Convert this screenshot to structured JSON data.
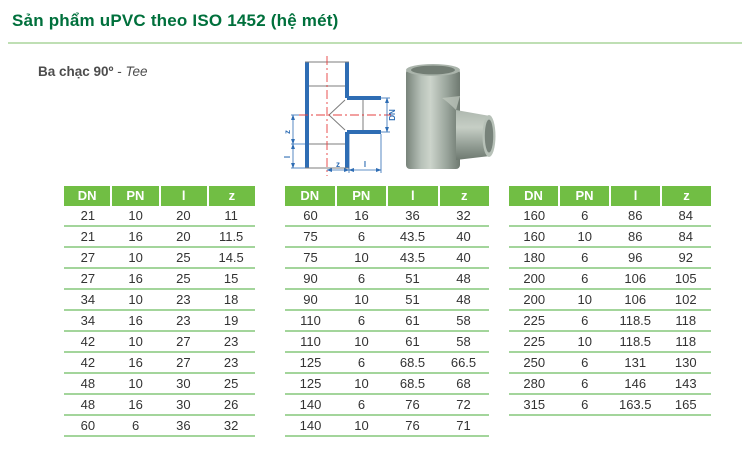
{
  "page": {
    "title": "Sản phẩm uPVC theo ISO 1452 (hệ mét)",
    "subtitle_bold": "Ba chạc 90º",
    "subtitle_sep": " - ",
    "subtitle_italic": "Tee"
  },
  "colors": {
    "title_green": "#00703C",
    "header_green": "#71BE44",
    "row_line_green": "#A3D59B",
    "rule_green": "#BFDFB4",
    "table_text": "#333333",
    "subtitle_gray": "#4D4D4D",
    "drawing_blue": "#2E6DB4",
    "drawing_red": "#E64040",
    "fitting_gray": "#9AA59C"
  },
  "diagram": {
    "labels": {
      "left_top": "z",
      "left_bottom": "l",
      "right": "DN",
      "bottom_left": "z",
      "bottom_right": "l"
    }
  },
  "tables": [
    {
      "headers": [
        "DN",
        "PN",
        "l",
        "z"
      ],
      "rows": [
        [
          "21",
          "10",
          "20",
          "11"
        ],
        [
          "21",
          "16",
          "20",
          "11.5"
        ],
        [
          "27",
          "10",
          "25",
          "14.5"
        ],
        [
          "27",
          "16",
          "25",
          "15"
        ],
        [
          "34",
          "10",
          "23",
          "18"
        ],
        [
          "34",
          "16",
          "23",
          "19"
        ],
        [
          "42",
          "10",
          "27",
          "23"
        ],
        [
          "42",
          "16",
          "27",
          "23"
        ],
        [
          "48",
          "10",
          "30",
          "25"
        ],
        [
          "48",
          "16",
          "30",
          "26"
        ],
        [
          "60",
          "6",
          "36",
          "32"
        ]
      ]
    },
    {
      "headers": [
        "DN",
        "PN",
        "l",
        "z"
      ],
      "rows": [
        [
          "60",
          "16",
          "36",
          "32"
        ],
        [
          "75",
          "6",
          "43.5",
          "40"
        ],
        [
          "75",
          "10",
          "43.5",
          "40"
        ],
        [
          "90",
          "6",
          "51",
          "48"
        ],
        [
          "90",
          "10",
          "51",
          "48"
        ],
        [
          "110",
          "6",
          "61",
          "58"
        ],
        [
          "110",
          "10",
          "61",
          "58"
        ],
        [
          "125",
          "6",
          "68.5",
          "66.5"
        ],
        [
          "125",
          "10",
          "68.5",
          "68"
        ],
        [
          "140",
          "6",
          "76",
          "72"
        ],
        [
          "140",
          "10",
          "76",
          "71"
        ]
      ]
    },
    {
      "headers": [
        "DN",
        "PN",
        "l",
        "z"
      ],
      "rows": [
        [
          "160",
          "6",
          "86",
          "84"
        ],
        [
          "160",
          "10",
          "86",
          "84"
        ],
        [
          "180",
          "6",
          "96",
          "92"
        ],
        [
          "200",
          "6",
          "106",
          "105"
        ],
        [
          "200",
          "10",
          "106",
          "102"
        ],
        [
          "225",
          "6",
          "118.5",
          "118"
        ],
        [
          "225",
          "10",
          "118.5",
          "118"
        ],
        [
          "250",
          "6",
          "131",
          "130"
        ],
        [
          "280",
          "6",
          "146",
          "143"
        ],
        [
          "315",
          "6",
          "163.5",
          "165"
        ]
      ]
    }
  ]
}
